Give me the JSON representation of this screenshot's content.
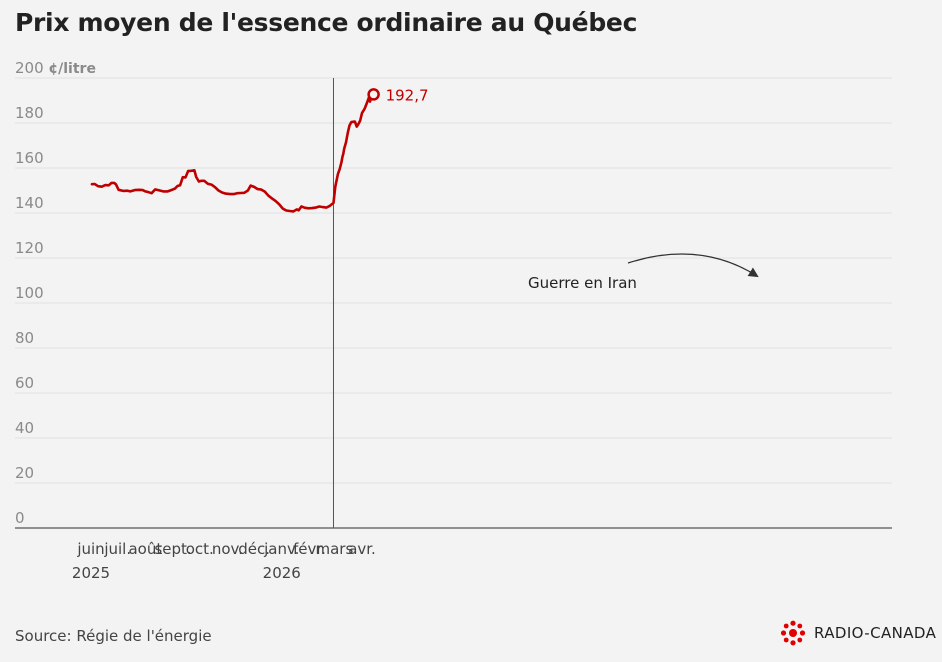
{
  "title": "Prix moyen de l'essence ordinaire au Québec",
  "source": "Source: Régie de l'énergie",
  "brand": "RADIO-CANADA",
  "colors": {
    "line": "#c00000",
    "grid": "#e2e2e2",
    "axis": "#555555",
    "background": "#f3f3f3"
  },
  "chart_data": {
    "type": "line",
    "title": "Prix moyen de l'essence ordinaire au Québec",
    "ylabel": "¢/litre",
    "ylim": [
      0,
      200
    ],
    "yticks": [
      0,
      20,
      40,
      60,
      80,
      100,
      120,
      140,
      160,
      180,
      200
    ],
    "ytick_labels": [
      "0",
      "20",
      "40",
      "60",
      "80",
      "100",
      "120",
      "140",
      "160",
      "180",
      "200 ¢/litre"
    ],
    "xlim": [
      "2025-05-15",
      "2026-04-30"
    ],
    "xticks": [
      {
        "date": "2025-06-01",
        "label": "juin",
        "year": "2025"
      },
      {
        "date": "2025-07-01",
        "label": "juil.",
        "year": ""
      },
      {
        "date": "2025-08-01",
        "label": "août",
        "year": ""
      },
      {
        "date": "2025-09-01",
        "label": "sept.",
        "year": ""
      },
      {
        "date": "2025-10-01",
        "label": "oct.",
        "year": ""
      },
      {
        "date": "2025-11-01",
        "label": "nov.",
        "year": ""
      },
      {
        "date": "2025-12-01",
        "label": "déc.",
        "year": ""
      },
      {
        "date": "2026-01-01",
        "label": "janv.",
        "year": "2026"
      },
      {
        "date": "2026-02-01",
        "label": "févr.",
        "year": ""
      },
      {
        "date": "2026-03-01",
        "label": "mars",
        "year": ""
      },
      {
        "date": "2026-04-01",
        "label": "avr.",
        "year": ""
      }
    ],
    "grid": true,
    "annotation": {
      "text": "Guerre en Iran",
      "date": "2026-02-28"
    },
    "end_label": "192,7",
    "series": [
      {
        "color": "#c00000",
        "points": [
          [
            "2025-06-02",
            152.8
          ],
          [
            "2025-06-05",
            152.9
          ],
          [
            "2025-06-09",
            151.9
          ],
          [
            "2025-06-13",
            151.7
          ],
          [
            "2025-06-17",
            152.4
          ],
          [
            "2025-06-21",
            152.3
          ],
          [
            "2025-06-24",
            153.4
          ],
          [
            "2025-06-27",
            153.4
          ],
          [
            "2025-06-29",
            152.7
          ],
          [
            "2025-07-02",
            150.3
          ],
          [
            "2025-07-07",
            149.8
          ],
          [
            "2025-07-12",
            149.9
          ],
          [
            "2025-07-15",
            149.6
          ],
          [
            "2025-07-20",
            150.2
          ],
          [
            "2025-07-25",
            150.3
          ],
          [
            "2025-07-29",
            150.2
          ],
          [
            "2025-08-01",
            149.6
          ],
          [
            "2025-08-05",
            149.2
          ],
          [
            "2025-08-08",
            148.8
          ],
          [
            "2025-08-12",
            150.5
          ],
          [
            "2025-08-16",
            150.1
          ],
          [
            "2025-08-21",
            149.6
          ],
          [
            "2025-08-26",
            149.6
          ],
          [
            "2025-08-30",
            150.2
          ],
          [
            "2025-09-03",
            150.8
          ],
          [
            "2025-09-06",
            152.0
          ],
          [
            "2025-09-09",
            152.3
          ],
          [
            "2025-09-12",
            155.9
          ],
          [
            "2025-09-15",
            155.8
          ],
          [
            "2025-09-18",
            158.7
          ],
          [
            "2025-09-21",
            158.7
          ],
          [
            "2025-09-25",
            159.0
          ],
          [
            "2025-09-27",
            156.0
          ],
          [
            "2025-09-30",
            154.0
          ],
          [
            "2025-10-03",
            154.3
          ],
          [
            "2025-10-06",
            154.3
          ],
          [
            "2025-10-10",
            153.0
          ],
          [
            "2025-10-14",
            152.6
          ],
          [
            "2025-10-18",
            151.5
          ],
          [
            "2025-10-22",
            150.0
          ],
          [
            "2025-10-26",
            149.1
          ],
          [
            "2025-10-30",
            148.6
          ],
          [
            "2025-11-04",
            148.4
          ],
          [
            "2025-11-08",
            148.4
          ],
          [
            "2025-11-12",
            148.8
          ],
          [
            "2025-11-16",
            148.9
          ],
          [
            "2025-11-20",
            149.0
          ],
          [
            "2025-11-24",
            150.0
          ],
          [
            "2025-11-27",
            152.2
          ],
          [
            "2025-12-01",
            151.6
          ],
          [
            "2025-12-05",
            150.6
          ],
          [
            "2025-12-09",
            150.4
          ],
          [
            "2025-12-13",
            149.5
          ],
          [
            "2025-12-17",
            147.7
          ],
          [
            "2025-12-21",
            146.5
          ],
          [
            "2025-12-25",
            145.4
          ],
          [
            "2025-12-29",
            143.9
          ],
          [
            "2026-01-02",
            142.0
          ],
          [
            "2026-01-06",
            141.1
          ],
          [
            "2026-01-10",
            140.9
          ],
          [
            "2026-01-14",
            140.7
          ],
          [
            "2026-01-18",
            141.6
          ],
          [
            "2026-01-20",
            141.2
          ],
          [
            "2026-01-23",
            142.9
          ],
          [
            "2026-01-27",
            142.3
          ],
          [
            "2026-01-31",
            142.1
          ],
          [
            "2026-02-04",
            142.2
          ],
          [
            "2026-02-08",
            142.4
          ],
          [
            "2026-02-12",
            142.9
          ],
          [
            "2026-02-16",
            142.6
          ],
          [
            "2026-02-20",
            142.4
          ],
          [
            "2026-02-24",
            143.2
          ],
          [
            "2026-02-28",
            144.5
          ],
          [
            "2026-03-02",
            151.7
          ],
          [
            "2026-03-05",
            157.3
          ],
          [
            "2026-03-07",
            159.5
          ],
          [
            "2026-03-09",
            162.6
          ],
          [
            "2026-03-10",
            164.9
          ],
          [
            "2026-03-11",
            166.3
          ],
          [
            "2026-03-12",
            168.6
          ],
          [
            "2026-03-14",
            171.4
          ],
          [
            "2026-03-16",
            175.7
          ],
          [
            "2026-03-18",
            178.9
          ],
          [
            "2026-03-20",
            180.4
          ],
          [
            "2026-03-24",
            180.6
          ],
          [
            "2026-03-26",
            178.4
          ],
          [
            "2026-03-28",
            179.5
          ],
          [
            "2026-03-30",
            181.1
          ],
          [
            "2026-04-01",
            184.4
          ],
          [
            "2026-04-04",
            186.4
          ],
          [
            "2026-04-07",
            189.5
          ],
          [
            "2026-04-09",
            191.5
          ],
          [
            "2026-04-10",
            189.5
          ],
          [
            "2026-04-11",
            191.1
          ],
          [
            "2026-04-12",
            192.7
          ],
          [
            "2026-04-13",
            190.6
          ],
          [
            "2026-04-14",
            192.7
          ]
        ]
      }
    ]
  }
}
